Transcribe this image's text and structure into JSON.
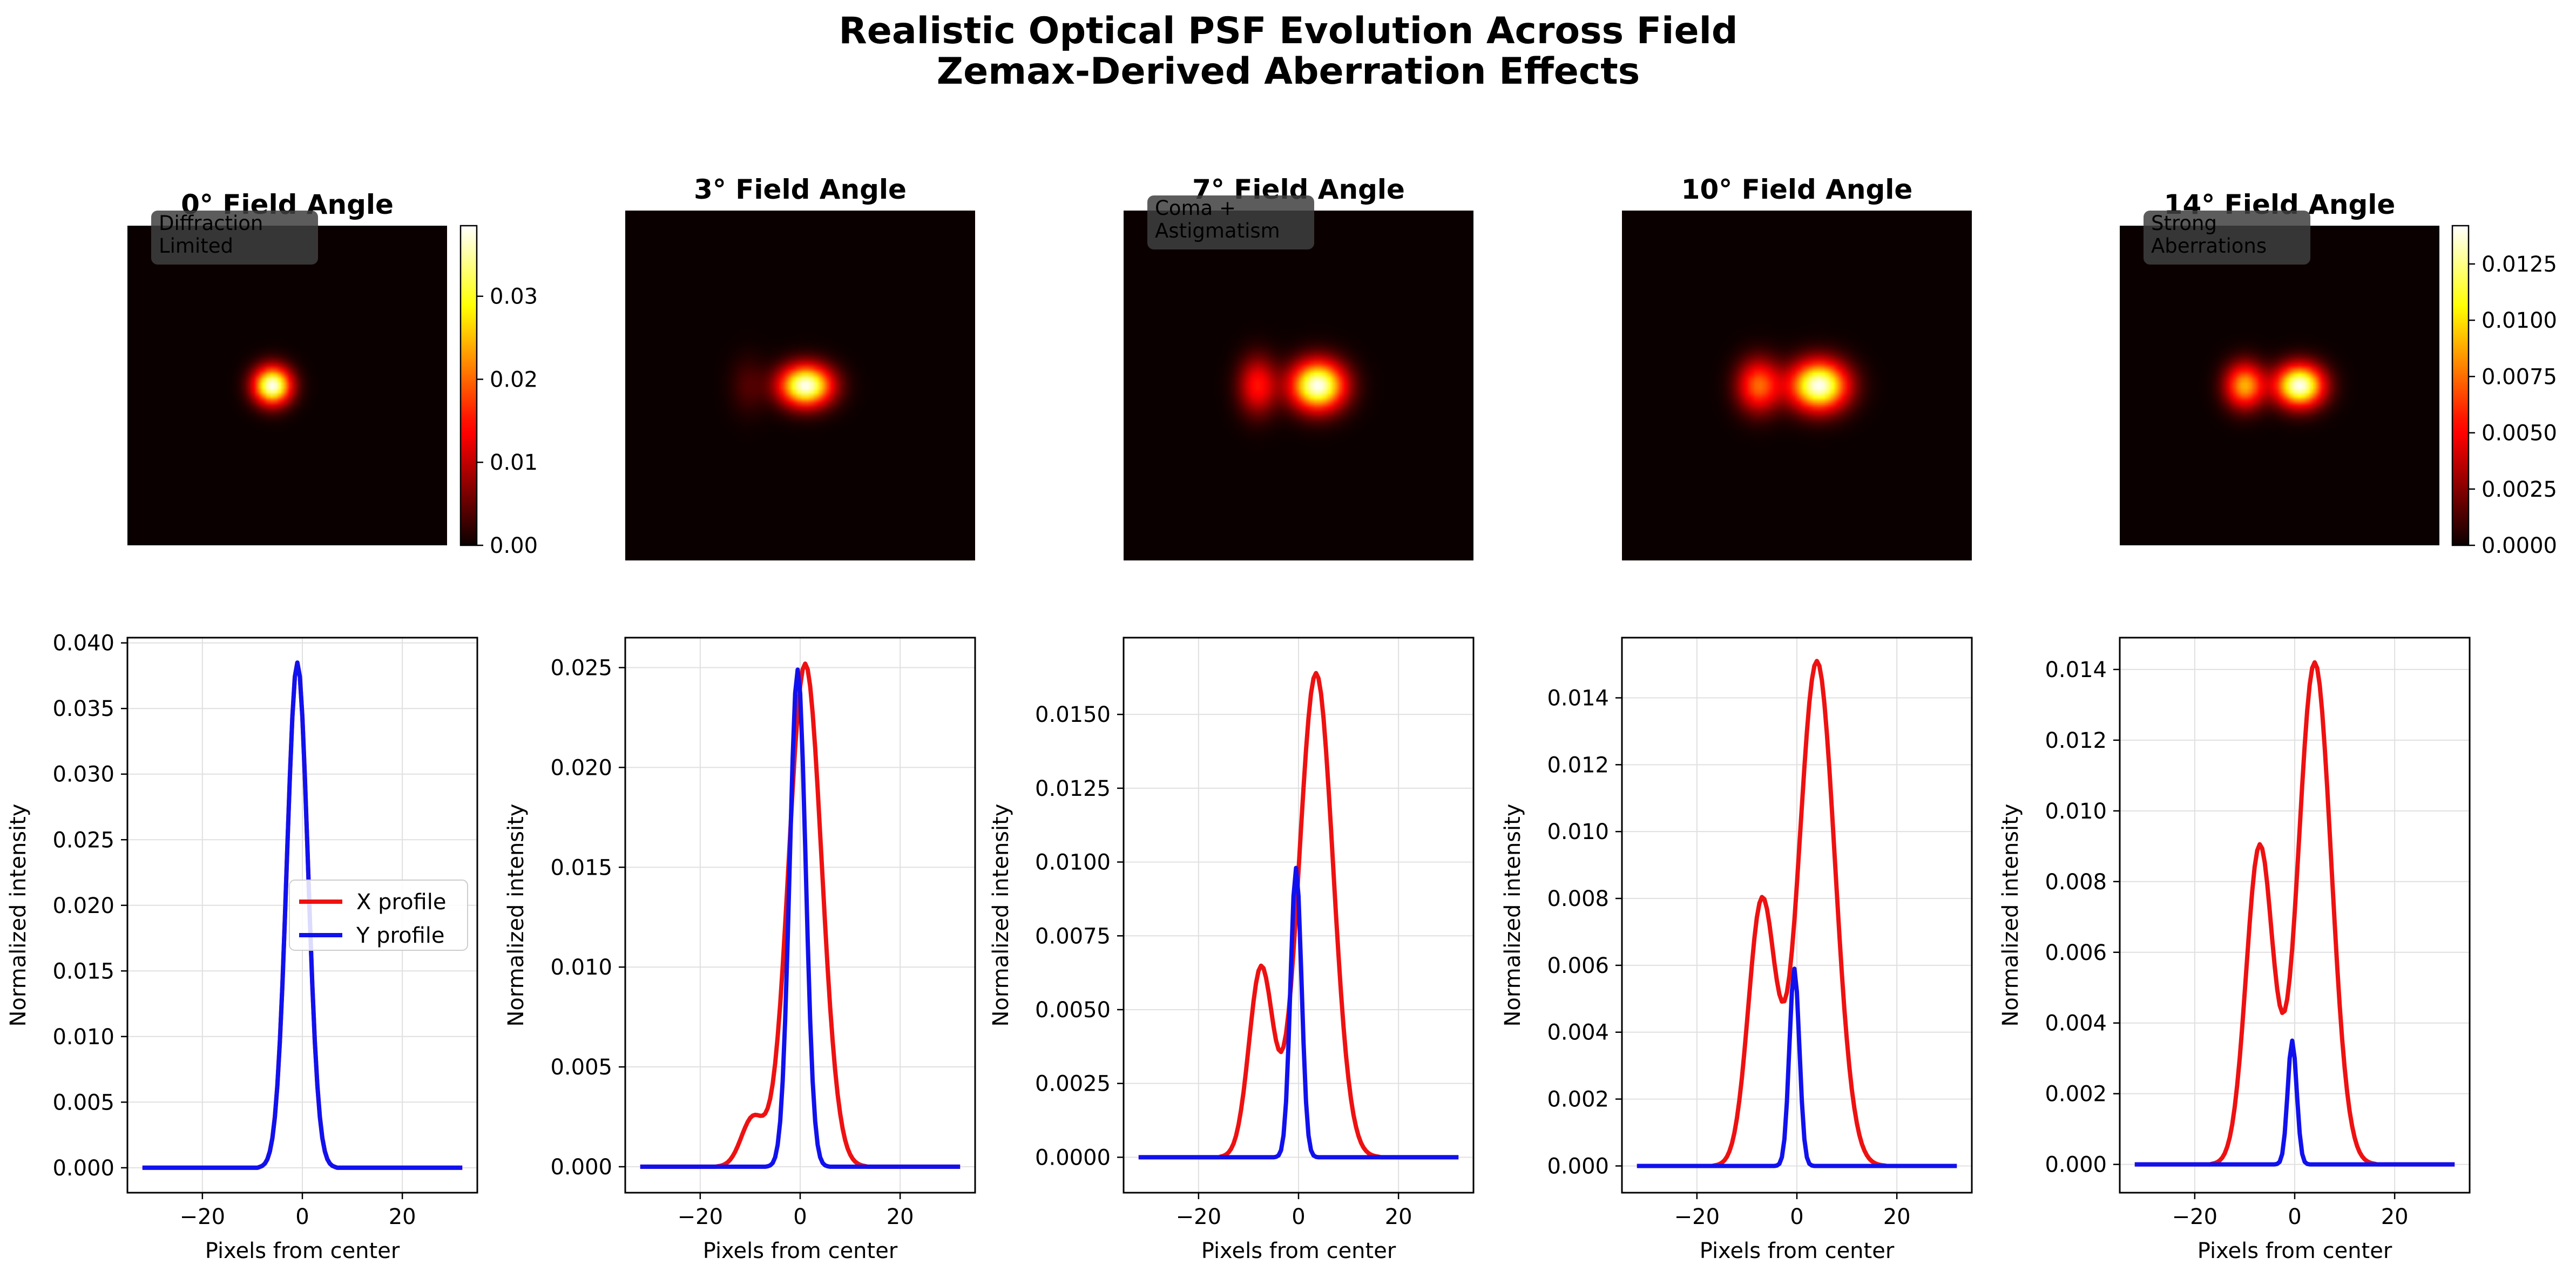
{
  "title": "Realistic Optical PSF Evolution Across Field",
  "subtitle": "Zemax-Derived Aberration Effects",
  "colors": {
    "x_profile": "#ee1111",
    "y_profile": "#1111ee",
    "colormap": "hot",
    "grid": "#e0e0e0"
  },
  "chart_data": [
    {
      "type": "heatmap",
      "title": "0° Field Angle",
      "annotation": [
        "Diffraction",
        "Limited"
      ],
      "colorbar": {
        "min": 0.0,
        "max": 0.0385,
        "ticks": [
          "0.00",
          "0.01",
          "0.02",
          "0.03"
        ],
        "tick_values": [
          0,
          0.01,
          0.02,
          0.03
        ]
      },
      "lobes": [
        {
          "x": -3,
          "y": 0,
          "sx": 2.6,
          "sy": 2.6,
          "peak": 0.0385
        }
      ]
    },
    {
      "type": "heatmap",
      "title": "3° Field Angle",
      "lobes": [
        {
          "x": 1,
          "y": 0,
          "sx": 3.3,
          "sy": 2.6,
          "peak": 0.0252
        },
        {
          "x": -9.5,
          "y": 0,
          "sx": 2.3,
          "sy": 3.6,
          "peak": 0.0024
        }
      ]
    },
    {
      "type": "heatmap",
      "title": "7° Field Angle",
      "annotation": [
        "Coma +",
        "Astigmatism"
      ],
      "lobes": [
        {
          "x": 3.5,
          "y": 0,
          "sx": 3.4,
          "sy": 3.1,
          "peak": 0.0164
        },
        {
          "x": -7.5,
          "y": 0,
          "sx": 2.4,
          "sy": 3.6,
          "peak": 0.0064
        }
      ]
    },
    {
      "type": "heatmap",
      "title": "10° Field Angle",
      "lobes": [
        {
          "x": 4,
          "y": 0,
          "sx": 3.6,
          "sy": 3.1,
          "peak": 0.0151
        },
        {
          "x": -7,
          "y": 0,
          "sx": 2.7,
          "sy": 3.3,
          "peak": 0.0079
        }
      ]
    },
    {
      "type": "heatmap",
      "title": "14° Field Angle",
      "annotation": [
        "Strong",
        "Aberrations"
      ],
      "colorbar": {
        "min": 0.0,
        "max": 0.0142,
        "ticks": [
          "0.0000",
          "0.0025",
          "0.0050",
          "0.0075",
          "0.0100",
          "0.0125"
        ],
        "tick_values": [
          0,
          0.0025,
          0.005,
          0.0075,
          0.01,
          0.0125
        ]
      },
      "lobes": [
        {
          "x": 4,
          "y": 0,
          "sx": 3.3,
          "sy": 2.9,
          "peak": 0.0142
        },
        {
          "x": -7,
          "y": 0,
          "sx": 2.7,
          "sy": 3.1,
          "peak": 0.009
        }
      ]
    },
    {
      "type": "line",
      "xlabel": "Pixels from center",
      "ylabel": "Normalized intensity",
      "xlim": [
        -35,
        35
      ],
      "ylim": [
        -0.0019,
        0.0404
      ],
      "xticks": [
        -20,
        0,
        20
      ],
      "xtick_labels": [
        "−20",
        "0",
        "20"
      ],
      "yticks": [
        0,
        0.005,
        0.01,
        0.015,
        0.02,
        0.025,
        0.03,
        0.035,
        0.04
      ],
      "ytick_labels": [
        "0.000",
        "0.005",
        "0.010",
        "0.015",
        "0.020",
        "0.025",
        "0.030",
        "0.035",
        "0.040"
      ],
      "legend": {
        "placement": "center-right",
        "entries": [
          "X profile",
          "Y profile"
        ]
      },
      "series": [
        {
          "name": "X profile",
          "axis": "x",
          "lobes": [
            {
              "c": -1,
              "s": 2.1,
              "p": 0.0385
            }
          ]
        },
        {
          "name": "Y profile",
          "axis": "y",
          "lobes": [
            {
              "c": -1,
              "s": 2.1,
              "p": 0.0385
            }
          ]
        }
      ]
    },
    {
      "type": "line",
      "xlabel": "Pixels from center",
      "ylabel": "Normalized intensity",
      "xlim": [
        -35,
        35
      ],
      "ylim": [
        -0.0013,
        0.0265
      ],
      "xticks": [
        -20,
        0,
        20
      ],
      "xtick_labels": [
        "−20",
        "0",
        "20"
      ],
      "yticks": [
        0,
        0.005,
        0.01,
        0.015,
        0.02,
        0.025
      ],
      "ytick_labels": [
        "0.000",
        "0.005",
        "0.010",
        "0.015",
        "0.020",
        "0.025"
      ],
      "series": [
        {
          "axis": "x",
          "lobes": [
            {
              "c": 1,
              "s": 3.3,
              "p": 0.0252
            },
            {
              "c": -9.5,
              "s": 2.3,
              "p": 0.0024
            }
          ]
        },
        {
          "axis": "y",
          "lobes": [
            {
              "c": -0.5,
              "s": 1.6,
              "p": 0.0249
            }
          ]
        }
      ]
    },
    {
      "type": "line",
      "xlabel": "Pixels from center",
      "ylabel": "Normalized intensity",
      "xlim": [
        -35,
        35
      ],
      "ylim": [
        -0.0012,
        0.0176
      ],
      "xticks": [
        -20,
        0,
        20
      ],
      "xtick_labels": [
        "−20",
        "0",
        "20"
      ],
      "yticks": [
        0,
        0.0025,
        0.005,
        0.0075,
        0.01,
        0.0125,
        0.015
      ],
      "ytick_labels": [
        "0.0000",
        "0.0025",
        "0.0050",
        "0.0075",
        "0.0100",
        "0.0125",
        "0.0150"
      ],
      "series": [
        {
          "axis": "x",
          "lobes": [
            {
              "c": 3.5,
              "s": 3.4,
              "p": 0.0164
            },
            {
              "c": -7.5,
              "s": 2.4,
              "p": 0.0064
            }
          ]
        },
        {
          "axis": "y",
          "lobes": [
            {
              "c": -0.5,
              "s": 1.1,
              "p": 0.0098
            }
          ]
        }
      ]
    },
    {
      "type": "line",
      "xlabel": "Pixels from center",
      "ylabel": "Normalized intensity",
      "xlim": [
        -35,
        35
      ],
      "ylim": [
        -0.0008,
        0.0158
      ],
      "xticks": [
        -20,
        0,
        20
      ],
      "xtick_labels": [
        "−20",
        "0",
        "20"
      ],
      "yticks": [
        0,
        0.002,
        0.004,
        0.006,
        0.008,
        0.01,
        0.012,
        0.014
      ],
      "ytick_labels": [
        "0.000",
        "0.002",
        "0.004",
        "0.006",
        "0.008",
        "0.010",
        "0.012",
        "0.014"
      ],
      "series": [
        {
          "axis": "x",
          "lobes": [
            {
              "c": 4,
              "s": 3.6,
              "p": 0.0151
            },
            {
              "c": -7,
              "s": 2.7,
              "p": 0.0079
            }
          ]
        },
        {
          "axis": "y",
          "lobes": [
            {
              "c": -0.5,
              "s": 1.0,
              "p": 0.0059
            }
          ]
        }
      ]
    },
    {
      "type": "line",
      "xlabel": "Pixels from center",
      "ylabel": "Normalized intensity",
      "xlim": [
        -35,
        35
      ],
      "ylim": [
        -0.0008,
        0.0149
      ],
      "xticks": [
        -20,
        0,
        20
      ],
      "xtick_labels": [
        "−20",
        "0",
        "20"
      ],
      "yticks": [
        0,
        0.002,
        0.004,
        0.006,
        0.008,
        0.01,
        0.012,
        0.014
      ],
      "ytick_labels": [
        "0.000",
        "0.002",
        "0.004",
        "0.006",
        "0.008",
        "0.010",
        "0.012",
        "0.014"
      ],
      "series": [
        {
          "axis": "x",
          "lobes": [
            {
              "c": 4,
              "s": 3.3,
              "p": 0.0142
            },
            {
              "c": -7,
              "s": 2.7,
              "p": 0.009
            }
          ]
        },
        {
          "axis": "y",
          "lobes": [
            {
              "c": -0.5,
              "s": 0.9,
              "p": 0.0035
            }
          ]
        }
      ]
    }
  ]
}
